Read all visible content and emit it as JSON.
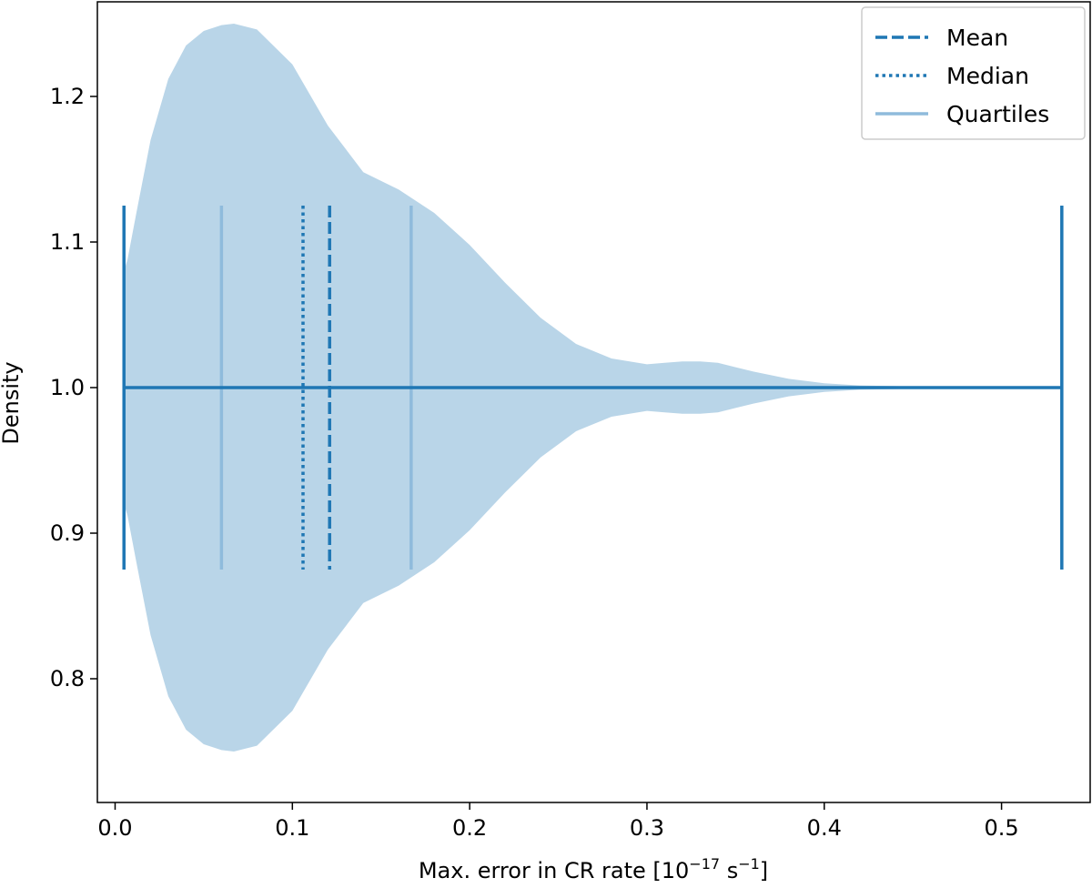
{
  "chart_data": {
    "type": "violin",
    "title": "",
    "xlabel_prefix": "Max. error in CR rate [10",
    "xlabel_exp1": "−17",
    "xlabel_mid": " s",
    "xlabel_exp2": "−1",
    "xlabel_suffix": "]",
    "ylabel": "Density",
    "xlim": [
      -0.01,
      0.55
    ],
    "ylim": [
      0.715,
      1.265
    ],
    "xticks": [
      0.0,
      0.1,
      0.2,
      0.3,
      0.4,
      0.5
    ],
    "xtick_labels": [
      "0.0",
      "0.1",
      "0.2",
      "0.3",
      "0.4",
      "0.5"
    ],
    "yticks": [
      0.8,
      0.9,
      1.0,
      1.1,
      1.2
    ],
    "ytick_labels": [
      "0.8",
      "0.9",
      "1.0",
      "1.1",
      "1.2"
    ],
    "position": 1.0,
    "min": 0.005,
    "max": 0.534,
    "q1": 0.06,
    "median": 0.106,
    "mean": 0.121,
    "q3": 0.167,
    "marker_half_height": 0.125,
    "half_width_profile": {
      "x": [
        0.005,
        0.007,
        0.012,
        0.02,
        0.03,
        0.04,
        0.05,
        0.06,
        0.067,
        0.08,
        0.1,
        0.12,
        0.14,
        0.16,
        0.18,
        0.2,
        0.22,
        0.24,
        0.26,
        0.28,
        0.3,
        0.31,
        0.32,
        0.33,
        0.34,
        0.35,
        0.36,
        0.38,
        0.4,
        0.42,
        0.45,
        0.5,
        0.534
      ],
      "w": [
        0.08,
        0.088,
        0.12,
        0.17,
        0.212,
        0.235,
        0.245,
        0.249,
        0.25,
        0.246,
        0.222,
        0.18,
        0.148,
        0.136,
        0.12,
        0.098,
        0.072,
        0.048,
        0.03,
        0.02,
        0.016,
        0.017,
        0.018,
        0.018,
        0.017,
        0.014,
        0.011,
        0.006,
        0.003,
        0.0015,
        0.0008,
        0.0006,
        0.0005
      ]
    },
    "colors": {
      "body": "#b9d5e8",
      "line": "#1f77b4",
      "quartile": "#8fbbdc",
      "legend_border": "#cccccc"
    },
    "legend": [
      {
        "label": "Mean",
        "style": "dashed"
      },
      {
        "label": "Median",
        "style": "dotted"
      },
      {
        "label": "Quartiles",
        "style": "solid-light"
      }
    ]
  }
}
